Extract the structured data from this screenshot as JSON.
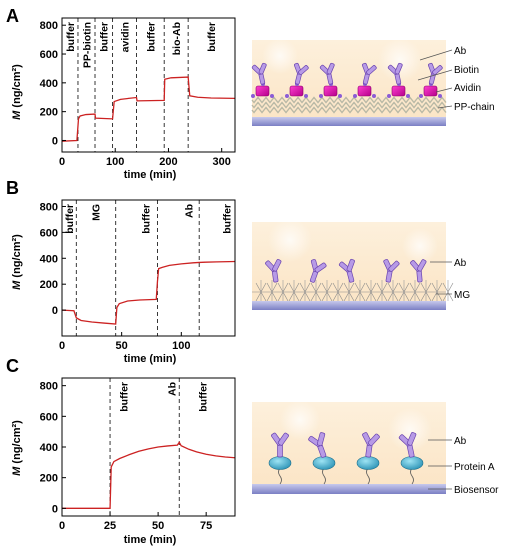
{
  "panels": [
    {
      "letter": "A",
      "ylabel_sym": "M",
      "ylabel_unit": " (ng/cm²)",
      "illustration_labels": [
        "Ab",
        "Biotin",
        "Avidin",
        "PP-chain"
      ]
    },
    {
      "letter": "B",
      "ylabel_sym": "M",
      "ylabel_unit": " (ng/cm²)",
      "illustration_labels": [
        "Ab",
        "MG"
      ]
    },
    {
      "letter": "C",
      "ylabel_sym": "M",
      "ylabel_unit": " (ng/cm²)",
      "illustration_labels": [
        "Ab",
        "Protein A",
        "Biosensor"
      ]
    }
  ],
  "chart_data": [
    {
      "type": "line",
      "xlabel": "time (min)",
      "xlim": [
        0,
        325
      ],
      "ylim": [
        -80,
        850
      ],
      "xticks": [
        0,
        100,
        200,
        300
      ],
      "yticks": [
        0,
        200,
        400,
        600,
        800
      ],
      "line_color": "#cc2222",
      "phase_dividers": [
        30,
        62,
        95,
        140,
        192,
        237
      ],
      "phases": [
        {
          "label": "buffer",
          "x": 15
        },
        {
          "label": "PP-biotin",
          "x": 46
        },
        {
          "label": "buffer",
          "x": 78
        },
        {
          "label": "avidin",
          "x": 117
        },
        {
          "label": "buffer",
          "x": 166
        },
        {
          "label": "bio-Ab",
          "x": 214
        },
        {
          "label": "buffer",
          "x": 280
        }
      ],
      "points": [
        [
          0,
          -5
        ],
        [
          28,
          0
        ],
        [
          31,
          150
        ],
        [
          34,
          170
        ],
        [
          45,
          180
        ],
        [
          62,
          183
        ],
        [
          63,
          155
        ],
        [
          95,
          150
        ],
        [
          98,
          270
        ],
        [
          110,
          285
        ],
        [
          125,
          292
        ],
        [
          140,
          298
        ],
        [
          141,
          275
        ],
        [
          192,
          278
        ],
        [
          193,
          425
        ],
        [
          205,
          435
        ],
        [
          237,
          440
        ],
        [
          240,
          310
        ],
        [
          255,
          300
        ],
        [
          280,
          295
        ],
        [
          325,
          292
        ]
      ]
    },
    {
      "type": "line",
      "xlabel": "time (min)",
      "xlim": [
        0,
        145
      ],
      "ylim": [
        -200,
        850
      ],
      "xticks": [
        0,
        50,
        100
      ],
      "yticks": [
        0,
        200,
        400,
        600,
        800
      ],
      "line_color": "#cc2222",
      "phase_dividers": [
        12,
        45,
        80,
        115
      ],
      "phases": [
        {
          "label": "buffer",
          "x": 6
        },
        {
          "label": "MG",
          "x": 28
        },
        {
          "label": "buffer",
          "x": 70
        },
        {
          "label": "Ab",
          "x": 106
        },
        {
          "label": "buffer",
          "x": 138
        }
      ],
      "points": [
        [
          0,
          0
        ],
        [
          10,
          -5
        ],
        [
          12,
          -60
        ],
        [
          16,
          -80
        ],
        [
          25,
          -92
        ],
        [
          35,
          -100
        ],
        [
          45,
          -108
        ],
        [
          46,
          20
        ],
        [
          48,
          50
        ],
        [
          55,
          70
        ],
        [
          65,
          78
        ],
        [
          79,
          83
        ],
        [
          80,
          220
        ],
        [
          81,
          320
        ],
        [
          84,
          330
        ],
        [
          90,
          345
        ],
        [
          100,
          357
        ],
        [
          110,
          365
        ],
        [
          115,
          368
        ],
        [
          120,
          370
        ],
        [
          130,
          372
        ],
        [
          145,
          375
        ]
      ]
    },
    {
      "type": "line",
      "xlabel": "time (min)",
      "xlim": [
        0,
        90
      ],
      "ylim": [
        -50,
        850
      ],
      "xticks": [
        0,
        25,
        50,
        75
      ],
      "yticks": [
        0,
        200,
        400,
        600,
        800
      ],
      "line_color": "#cc2222",
      "phase_dividers": [
        25,
        61
      ],
      "phases": [
        {
          "label": "buffer",
          "x": 32
        },
        {
          "label": "Ab",
          "x": 57
        },
        {
          "label": "buffer",
          "x": 73
        }
      ],
      "points": [
        [
          0,
          0
        ],
        [
          25,
          0
        ],
        [
          25.6,
          270
        ],
        [
          27,
          305
        ],
        [
          30,
          325
        ],
        [
          35,
          350
        ],
        [
          40,
          372
        ],
        [
          45,
          388
        ],
        [
          50,
          400
        ],
        [
          55,
          407
        ],
        [
          60,
          412
        ],
        [
          61,
          430
        ],
        [
          62,
          408
        ],
        [
          66,
          385
        ],
        [
          70,
          368
        ],
        [
          75,
          353
        ],
        [
          80,
          342
        ],
        [
          85,
          335
        ],
        [
          90,
          330
        ]
      ]
    }
  ]
}
